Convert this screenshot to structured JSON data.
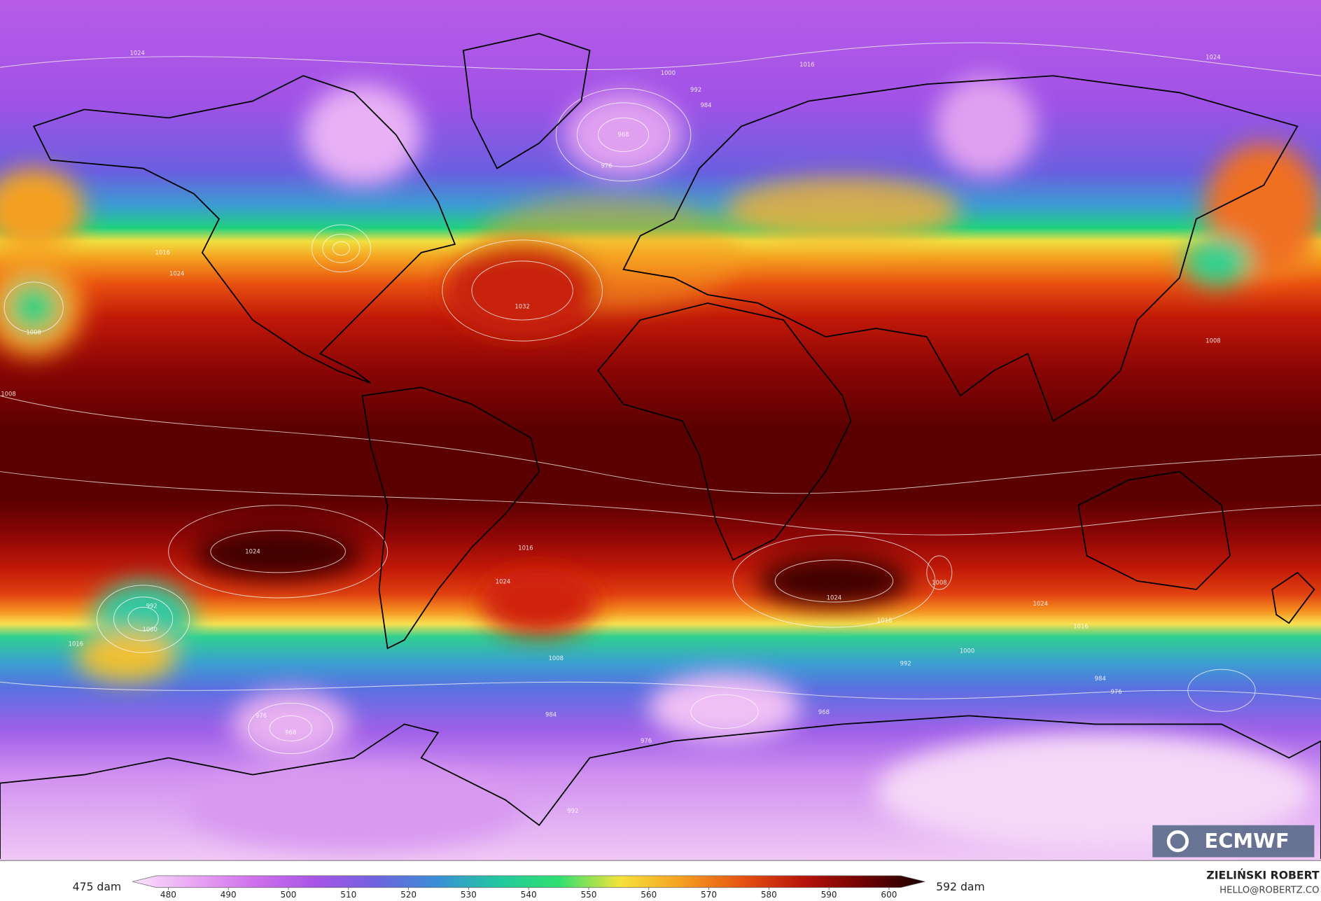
{
  "map": {
    "logo": "ECMWF",
    "contour_labels": [
      "1032",
      "1024",
      "1024",
      "1016",
      "1024",
      "1016",
      "1008",
      "1000",
      "992",
      "1016",
      "968",
      "976",
      "1024",
      "1016",
      "1000",
      "992",
      "984",
      "1024",
      "1008",
      "1008",
      "1024",
      "1016",
      "984",
      "976",
      "992",
      "1000",
      "968",
      "976",
      "992",
      "984",
      "1016",
      "1024",
      "1008",
      "976",
      "968",
      "1008"
    ]
  },
  "colorbar": {
    "min_label": "475 dam",
    "max_label": "592 dam",
    "clim": [
      474,
      606
    ],
    "ticks": [
      480,
      490,
      500,
      510,
      520,
      530,
      540,
      550,
      560,
      570,
      580,
      590,
      600
    ],
    "colors": [
      "#fbe3fb",
      "#e9a6f3",
      "#cf70ec",
      "#a855e6",
      "#6f63e0",
      "#3a8fd6",
      "#22c8a0",
      "#2fe070",
      "#f6e23a",
      "#f5a021",
      "#e65312",
      "#b8140a",
      "#6e0202",
      "#1a0000"
    ]
  },
  "credit": {
    "name": "ZIELIŃSKI ROBERT",
    "email": "HELLO@ROBERTZ.CO"
  }
}
